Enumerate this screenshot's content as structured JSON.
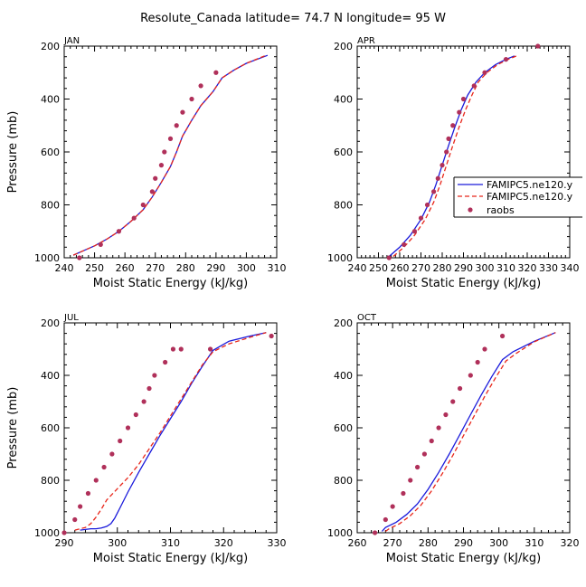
{
  "title": "Resolute_Canada  latitude= 74.7 N longitude= 95 W",
  "colors": {
    "model1": "#1a1adb",
    "model2": "#e8261a",
    "obs": "#b0305a"
  },
  "legend": {
    "placement": "inside APR panel, right",
    "entries": [
      "FAMIPC5.ne120.y",
      "FAMIPC5.ne120.y",
      "raobs"
    ]
  },
  "chart_data": [
    {
      "type": "line",
      "panel": "JAN",
      "xlabel": "Moist Static Energy (kJ/kg)",
      "ylabel": "Pressure (mb)",
      "xlim": [
        240,
        310
      ],
      "xticks": [
        240,
        250,
        260,
        270,
        280,
        290,
        300,
        310
      ],
      "ylim": [
        200,
        1000
      ],
      "yticks": [
        200,
        400,
        600,
        800,
        1000
      ],
      "y_reversed": true,
      "series": [
        {
          "name": "FAMIPC5.ne120.y",
          "style": "solid",
          "x": [
            243,
            246,
            250,
            254,
            258,
            262,
            266,
            269,
            272,
            275,
            277,
            279,
            282,
            285,
            289,
            292,
            296,
            300,
            307
          ],
          "y": [
            990,
            975,
            955,
            930,
            900,
            862,
            818,
            770,
            715,
            655,
            600,
            540,
            480,
            425,
            372,
            320,
            290,
            265,
            235
          ]
        },
        {
          "name": "FAMIPC5.ne120.y",
          "style": "dashed",
          "x": [
            243,
            246,
            250,
            254,
            258,
            262,
            266,
            269,
            272,
            275,
            277,
            279,
            282,
            285,
            289,
            292,
            296,
            300,
            306
          ],
          "y": [
            990,
            975,
            955,
            930,
            900,
            862,
            818,
            770,
            715,
            655,
            600,
            540,
            480,
            425,
            372,
            320,
            290,
            265,
            237
          ]
        },
        {
          "name": "raobs",
          "style": "dots",
          "x": [
            245,
            252,
            258,
            263,
            266,
            269,
            270,
            272,
            273,
            275,
            277,
            279,
            282,
            285,
            290
          ],
          "y": [
            1000,
            950,
            900,
            850,
            800,
            750,
            700,
            650,
            600,
            550,
            500,
            450,
            400,
            350,
            300
          ]
        }
      ]
    },
    {
      "type": "line",
      "panel": "APR",
      "xlabel": "Moist Static Energy (kJ/kg)",
      "ylabel": "",
      "xlim": [
        240,
        340
      ],
      "xticks": [
        240,
        250,
        260,
        270,
        280,
        290,
        300,
        310,
        320,
        330,
        340
      ],
      "ylim": [
        200,
        1000
      ],
      "yticks": [
        200,
        400,
        600,
        800,
        1000
      ],
      "y_reversed": true,
      "series": [
        {
          "name": "FAMIPC5.ne120.y",
          "style": "solid",
          "x": [
            255,
            260,
            265,
            270,
            274,
            277,
            280,
            283,
            286,
            289,
            292,
            296,
            300,
            305,
            310,
            314
          ],
          "y": [
            995,
            960,
            915,
            855,
            790,
            725,
            650,
            575,
            505,
            440,
            385,
            335,
            300,
            270,
            250,
            237
          ]
        },
        {
          "name": "FAMIPC5.ne120.y",
          "style": "dashed",
          "x": [
            257,
            262,
            267,
            272,
            276,
            279,
            282,
            285,
            288,
            291,
            294,
            297,
            301,
            306,
            311,
            315
          ],
          "y": [
            995,
            960,
            915,
            855,
            790,
            725,
            650,
            575,
            505,
            440,
            385,
            335,
            300,
            270,
            250,
            237
          ]
        },
        {
          "name": "raobs",
          "style": "dots",
          "x": [
            255,
            262,
            267,
            270,
            273,
            276,
            278,
            280,
            282,
            283,
            285,
            288,
            290,
            295,
            300,
            310,
            325
          ],
          "y": [
            1000,
            950,
            900,
            850,
            800,
            750,
            700,
            650,
            600,
            550,
            500,
            450,
            400,
            350,
            300,
            250,
            200
          ]
        }
      ]
    },
    {
      "type": "line",
      "panel": "JUL",
      "xlabel": "Moist Static Energy (kJ/kg)",
      "ylabel": "Pressure (mb)",
      "xlim": [
        290,
        330
      ],
      "xticks": [
        290,
        300,
        310,
        320,
        330
      ],
      "ylim": [
        200,
        1000
      ],
      "yticks": [
        200,
        400,
        600,
        800,
        1000
      ],
      "y_reversed": true,
      "series": [
        {
          "name": "FAMIPC5.ne120.y",
          "style": "solid",
          "x": [
            293,
            295,
            296,
            297,
            298,
            298.8,
            299.5,
            300.5,
            302,
            304,
            306,
            308,
            310,
            312,
            314,
            316,
            318,
            321,
            325,
            328
          ],
          "y": [
            990,
            985,
            985,
            982,
            976,
            965,
            945,
            905,
            845,
            770,
            700,
            630,
            565,
            500,
            430,
            365,
            305,
            270,
            250,
            237
          ]
        },
        {
          "name": "FAMIPC5.ne120.y",
          "style": "dashed",
          "x": [
            292,
            294,
            295,
            296,
            297,
            298,
            300,
            302,
            304,
            306,
            308,
            310,
            312,
            314,
            316,
            318,
            321,
            325,
            328
          ],
          "y": [
            990,
            980,
            965,
            940,
            910,
            875,
            832,
            790,
            740,
            680,
            620,
            555,
            490,
            425,
            360,
            310,
            280,
            255,
            237
          ]
        },
        {
          "name": "raobs",
          "style": "dots",
          "x": [
            290,
            292,
            293,
            294.5,
            296,
            297.5,
            299,
            300.5,
            302,
            303.5,
            305,
            306,
            307,
            309,
            310.5,
            312,
            317.5,
            329
          ],
          "y": [
            1000,
            950,
            900,
            850,
            800,
            750,
            700,
            650,
            600,
            550,
            500,
            450,
            400,
            350,
            300,
            300,
            300,
            250
          ]
        }
      ]
    },
    {
      "type": "line",
      "panel": "OCT",
      "xlabel": "Moist Static Energy (kJ/kg)",
      "ylabel": "",
      "xlim": [
        260,
        320
      ],
      "xticks": [
        260,
        270,
        280,
        290,
        300,
        310,
        320
      ],
      "ylim": [
        200,
        1000
      ],
      "yticks": [
        200,
        400,
        600,
        800,
        1000
      ],
      "y_reversed": true,
      "series": [
        {
          "name": "FAMIPC5.ne120.y",
          "style": "solid",
          "x": [
            267,
            268,
            271,
            274,
            277,
            280,
            283,
            286,
            289,
            292,
            295,
            298,
            301,
            304,
            310,
            316
          ],
          "y": [
            995,
            980,
            960,
            930,
            890,
            835,
            770,
            700,
            625,
            550,
            475,
            405,
            340,
            310,
            270,
            237
          ]
        },
        {
          "name": "FAMIPC5.ne120.y",
          "style": "dashed",
          "x": [
            268,
            269,
            272,
            275,
            278,
            281,
            284,
            287,
            290,
            293,
            296,
            299,
            302,
            305,
            310,
            316
          ],
          "y": [
            995,
            985,
            965,
            935,
            895,
            840,
            775,
            705,
            630,
            555,
            480,
            410,
            345,
            315,
            272,
            237
          ]
        },
        {
          "name": "raobs",
          "style": "dots",
          "x": [
            265,
            268,
            270,
            273,
            275,
            277,
            279,
            281,
            283,
            285,
            287,
            289,
            292,
            294,
            296,
            301
          ],
          "y": [
            1000,
            950,
            900,
            850,
            800,
            750,
            700,
            650,
            600,
            550,
            500,
            450,
            400,
            350,
            300,
            250
          ]
        }
      ]
    }
  ]
}
